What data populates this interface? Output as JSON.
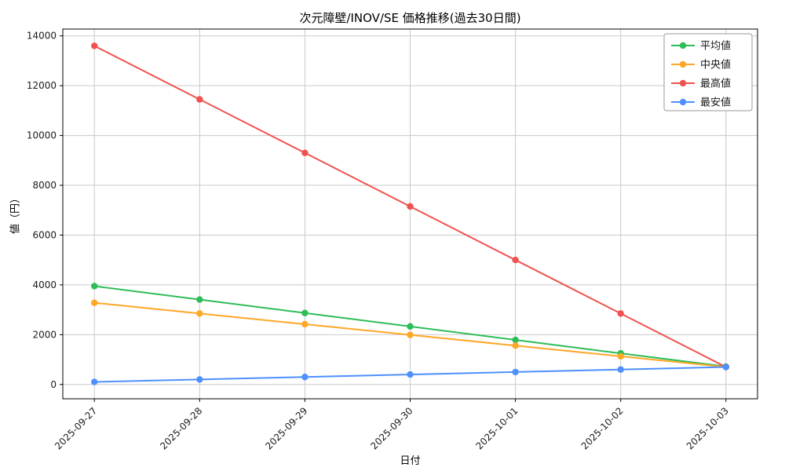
{
  "chart_data": {
    "type": "line",
    "title": "次元障壁/INOV/SE 価格推移(過去30日間)",
    "xlabel": "日付",
    "ylabel": "値（円）",
    "categories": [
      "2025-09-27",
      "2025-09-28",
      "2025-09-29",
      "2025-09-30",
      "2025-10-01",
      "2025-10-02",
      "2025-10-03"
    ],
    "series": [
      {
        "name": "平均値",
        "color": "#2ebd59",
        "values": [
          3950,
          3410,
          2870,
          2330,
          1790,
          1250,
          720
        ]
      },
      {
        "name": "中央値",
        "color": "#ffa726",
        "values": [
          3280,
          2850,
          2420,
          1990,
          1560,
          1130,
          700
        ]
      },
      {
        "name": "最高値",
        "color": "#ef5350",
        "values": [
          13600,
          11450,
          9300,
          7150,
          5000,
          2850,
          700
        ]
      },
      {
        "name": "最安値",
        "color": "#4d90fe",
        "values": [
          100,
          200,
          300,
          400,
          500,
          600,
          700
        ]
      }
    ],
    "yticks": [
      0,
      2000,
      4000,
      6000,
      8000,
      10000,
      12000,
      14000
    ],
    "ylim": [
      -575,
      14275
    ],
    "grid": true,
    "legend_position": "upper right",
    "marker": "circle"
  }
}
